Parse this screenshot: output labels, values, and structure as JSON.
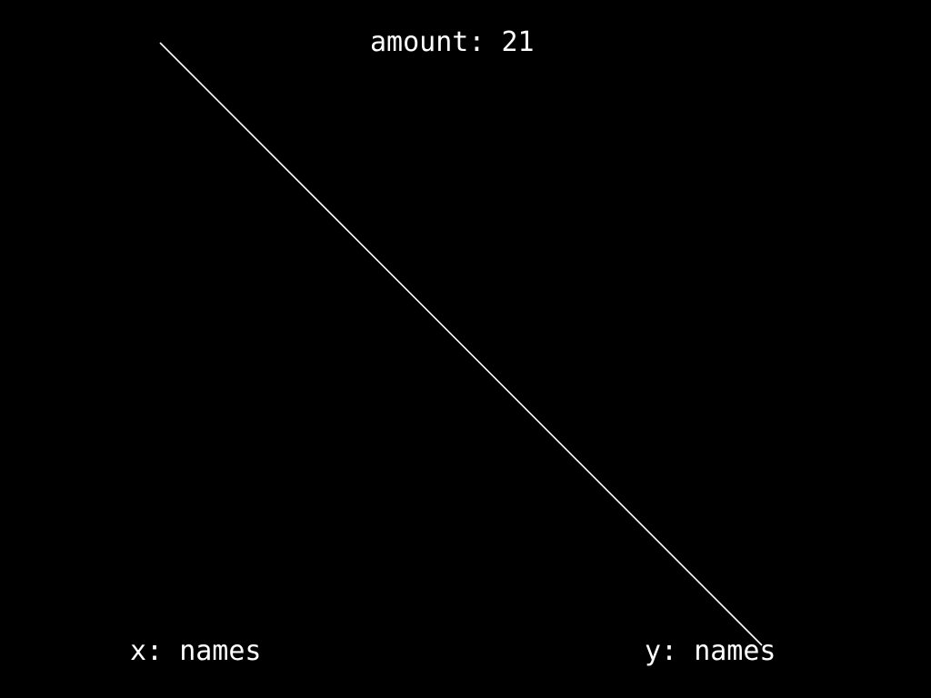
{
  "title": {
    "prefix": "amount: ",
    "value": "21"
  },
  "x_axis": {
    "prefix": "x: ",
    "value": "names"
  },
  "y_axis": {
    "prefix": "y: ",
    "value": "names"
  },
  "colors": {
    "background": "#000000",
    "foreground": "#ffffff"
  }
}
